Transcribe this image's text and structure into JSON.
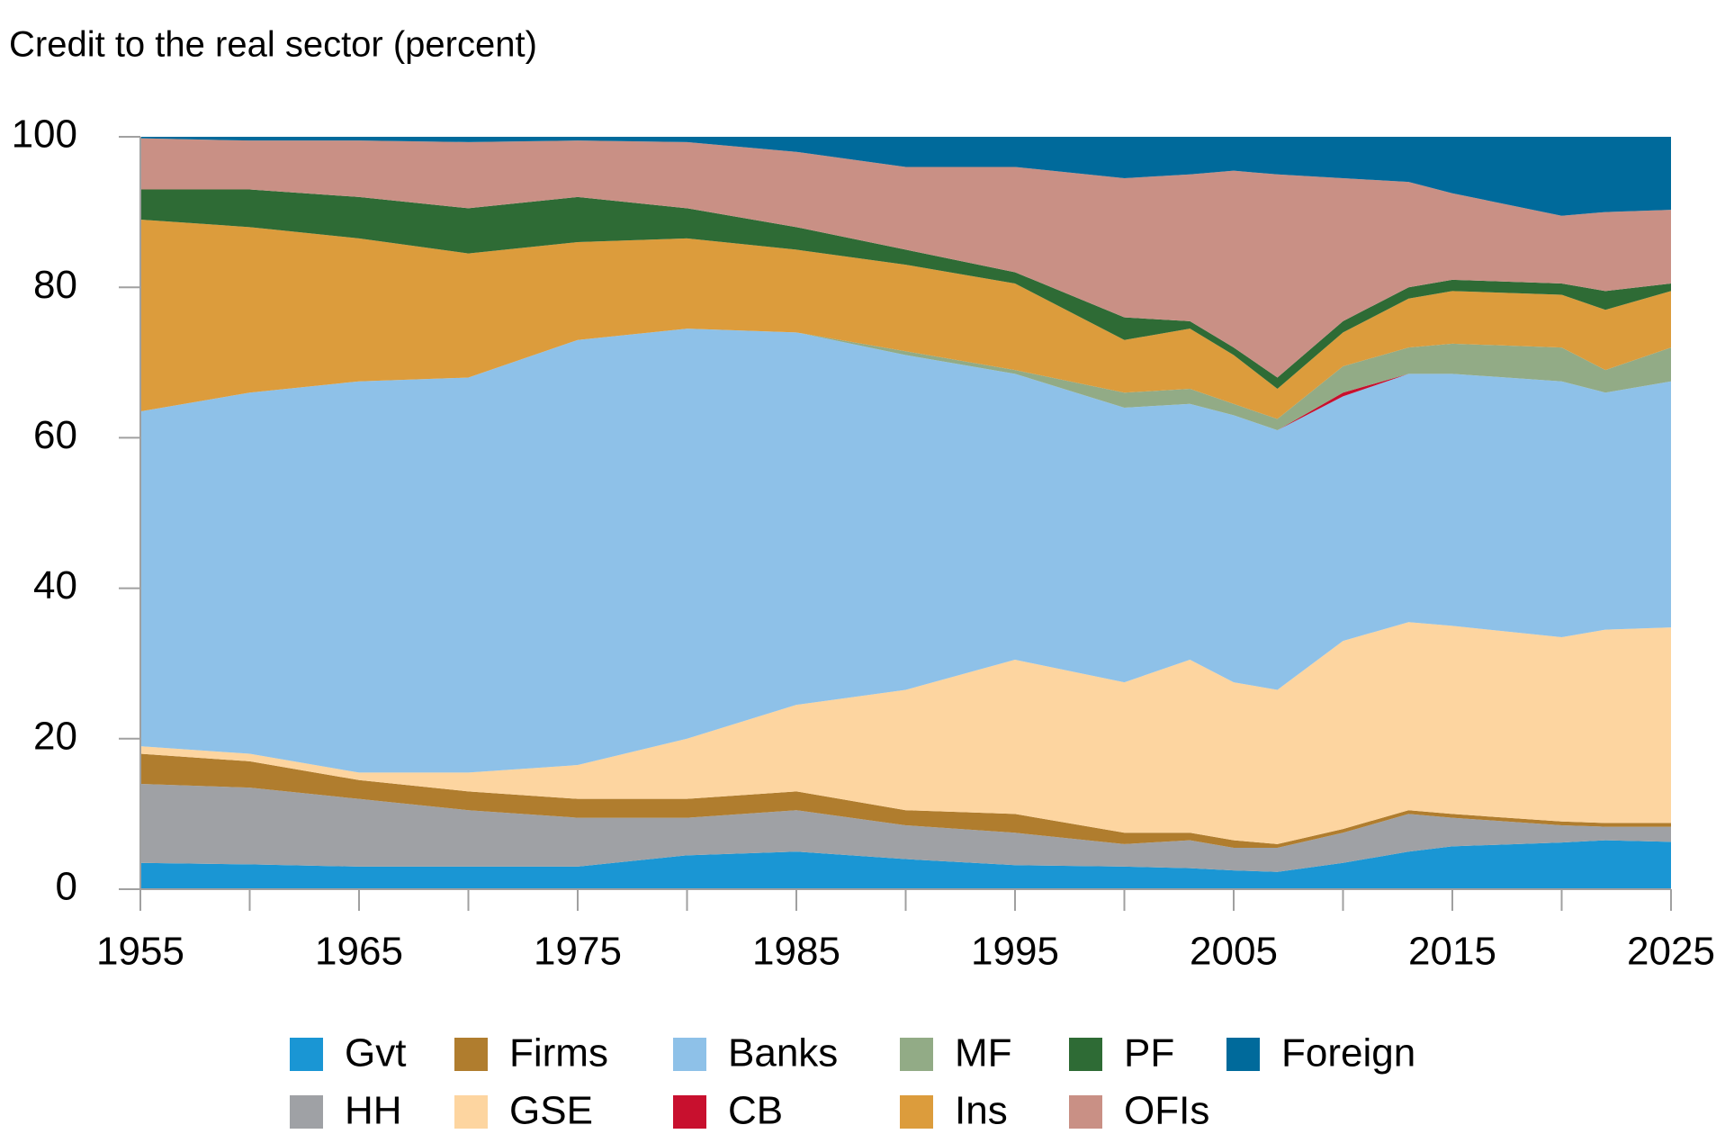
{
  "chart_data": {
    "type": "stacked_area",
    "title": "Credit to the real sector (percent)",
    "x": [
      1955,
      1960,
      1965,
      1970,
      1975,
      1980,
      1985,
      1990,
      1995,
      2000,
      2003,
      2005,
      2007,
      2010,
      2013,
      2015,
      2020,
      2022,
      2025
    ],
    "xlim": [
      1955,
      2025
    ],
    "xticks": [
      1955,
      1965,
      1975,
      1985,
      1995,
      2005,
      2015,
      2025
    ],
    "xminor_ticks": [
      1960,
      1970,
      1980,
      1990,
      2000,
      2010,
      2020
    ],
    "ylim": [
      0,
      100
    ],
    "yticks": [
      0,
      20,
      40,
      60,
      80,
      100
    ],
    "series": [
      {
        "name": "Gvt",
        "color": "#1a96d4",
        "values": [
          3.5,
          3.3,
          3,
          3,
          3,
          4.5,
          5,
          4,
          3.2,
          3,
          2.8,
          2.5,
          2.3,
          3.5,
          5,
          5.7,
          6.2,
          6.5,
          6.3
        ]
      },
      {
        "name": "HH",
        "color": "#9fa1a5",
        "values": [
          10.5,
          10.2,
          9,
          7.5,
          6.5,
          5,
          5.5,
          4.5,
          4.3,
          3,
          3.7,
          3,
          3.2,
          4,
          5,
          3.8,
          2.3,
          1.8,
          2.0
        ]
      },
      {
        "name": "Firms",
        "color": "#b07d2e",
        "values": [
          4,
          3.5,
          2.5,
          2.5,
          2.5,
          2.5,
          2.5,
          2,
          2.5,
          1.5,
          1,
          1,
          0.5,
          0.5,
          0.5,
          0.5,
          0.5,
          0.5,
          0.5
        ]
      },
      {
        "name": "GSE",
        "color": "#fdd5a0",
        "values": [
          1,
          1,
          1,
          2.5,
          4.5,
          8,
          11.5,
          16,
          20.5,
          20,
          23,
          21,
          20.5,
          25,
          25,
          25,
          24.5,
          25.7,
          26
        ]
      },
      {
        "name": "Banks",
        "color": "#8ec1e8",
        "values": [
          44.5,
          48,
          52,
          52.5,
          56.5,
          54.5,
          49.5,
          44.5,
          38,
          36.5,
          34,
          35.5,
          34.5,
          32.5,
          33,
          33.5,
          34,
          31.5,
          32.7
        ]
      },
      {
        "name": "CB",
        "color": "#c8102e",
        "values": [
          0,
          0,
          0,
          0,
          0,
          0,
          0,
          0,
          0,
          0,
          0,
          0,
          0,
          0.5,
          0,
          0,
          0,
          0,
          0
        ]
      },
      {
        "name": "MF",
        "color": "#92ab86",
        "values": [
          0,
          0,
          0,
          0,
          0,
          0,
          0,
          0.5,
          0.5,
          2,
          2,
          1.5,
          1.5,
          3.5,
          3.5,
          4,
          4.5,
          3,
          4.5
        ]
      },
      {
        "name": "Ins",
        "color": "#dc9c3c",
        "values": [
          25.5,
          22,
          19,
          16.5,
          13,
          12,
          11,
          11.5,
          11.5,
          7,
          8,
          6.5,
          4,
          4.5,
          6.5,
          7,
          7,
          8,
          7.5
        ]
      },
      {
        "name": "PF",
        "color": "#2e6b35",
        "values": [
          4,
          5,
          5.5,
          6,
          6,
          4,
          3,
          2,
          1.5,
          3,
          1,
          1,
          1.5,
          1.5,
          1.5,
          1.5,
          1.5,
          2.5,
          1
        ]
      },
      {
        "name": "OFIs",
        "color": "#c99085",
        "values": [
          6.8,
          6.5,
          7.5,
          8.8,
          7.5,
          8.8,
          10,
          11,
          14,
          18.5,
          19.5,
          23.5,
          27,
          19,
          14,
          11.5,
          9,
          10.5,
          9.8
        ]
      },
      {
        "name": "Foreign",
        "color": "#006a9b",
        "values": [
          0.2,
          0.5,
          0.5,
          0.7,
          0.5,
          0.7,
          2,
          4,
          4,
          5.5,
          5,
          4.5,
          5,
          5.5,
          6,
          7.5,
          10.5,
          10,
          9.7
        ]
      }
    ]
  }
}
